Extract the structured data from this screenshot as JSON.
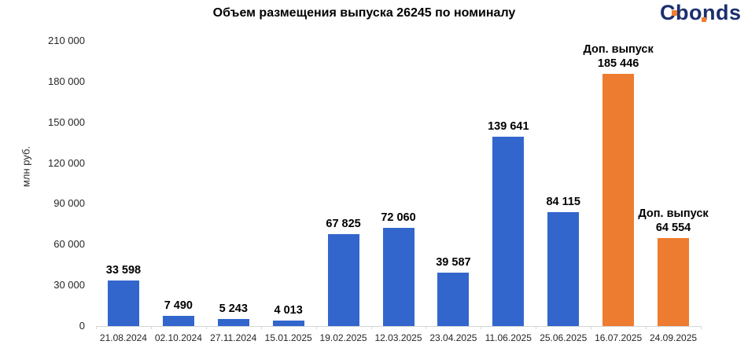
{
  "title": "Объем размещения выпуска 26245 по номиналу",
  "logo": {
    "text": "Cbonds",
    "navy_color": "#1C2F6E",
    "orange_color": "#F07E33"
  },
  "y_axis": {
    "label": "млн руб.",
    "ticks": [
      {
        "label": "210 000",
        "value": 210000
      },
      {
        "label": "180 000",
        "value": 180000
      },
      {
        "label": "150 000",
        "value": 150000
      },
      {
        "label": "120 000",
        "value": 120000
      },
      {
        "label": "90 000",
        "value": 90000
      },
      {
        "label": "60 000",
        "value": 60000
      },
      {
        "label": "30 000",
        "value": 30000
      },
      {
        "label": "0",
        "value": 0
      }
    ]
  },
  "chart_data": {
    "type": "bar",
    "title": "Объем размещения выпуска 26245 по номиналу",
    "xlabel": "",
    "ylabel": "млн руб.",
    "ylim": [
      0,
      210000
    ],
    "grid": false,
    "legend_position": "none",
    "categories": [
      "21.08.2024",
      "02.10.2024",
      "27.11.2024",
      "15.01.2025",
      "19.02.2025",
      "12.03.2025",
      "23.04.2025",
      "11.06.2025",
      "25.06.2025",
      "16.07.2025",
      "24.09.2025"
    ],
    "values": [
      33598,
      7490,
      5243,
      4013,
      67825,
      72060,
      39587,
      139641,
      84115,
      185446,
      64554
    ],
    "value_labels": [
      "33 598",
      "7 490",
      "5 243",
      "4 013",
      "67 825",
      "72 060",
      "39 587",
      "139 641",
      "84 115",
      "185 446",
      "64 554"
    ],
    "bar_types": [
      "regular",
      "regular",
      "regular",
      "regular",
      "regular",
      "regular",
      "regular",
      "regular",
      "regular",
      "additional",
      "additional"
    ],
    "annotations": [
      null,
      null,
      null,
      null,
      null,
      null,
      null,
      null,
      null,
      "Доп. выпуск",
      "Доп. выпуск"
    ],
    "colors": {
      "regular": "#3366CC",
      "additional": "#EE7C30"
    }
  }
}
